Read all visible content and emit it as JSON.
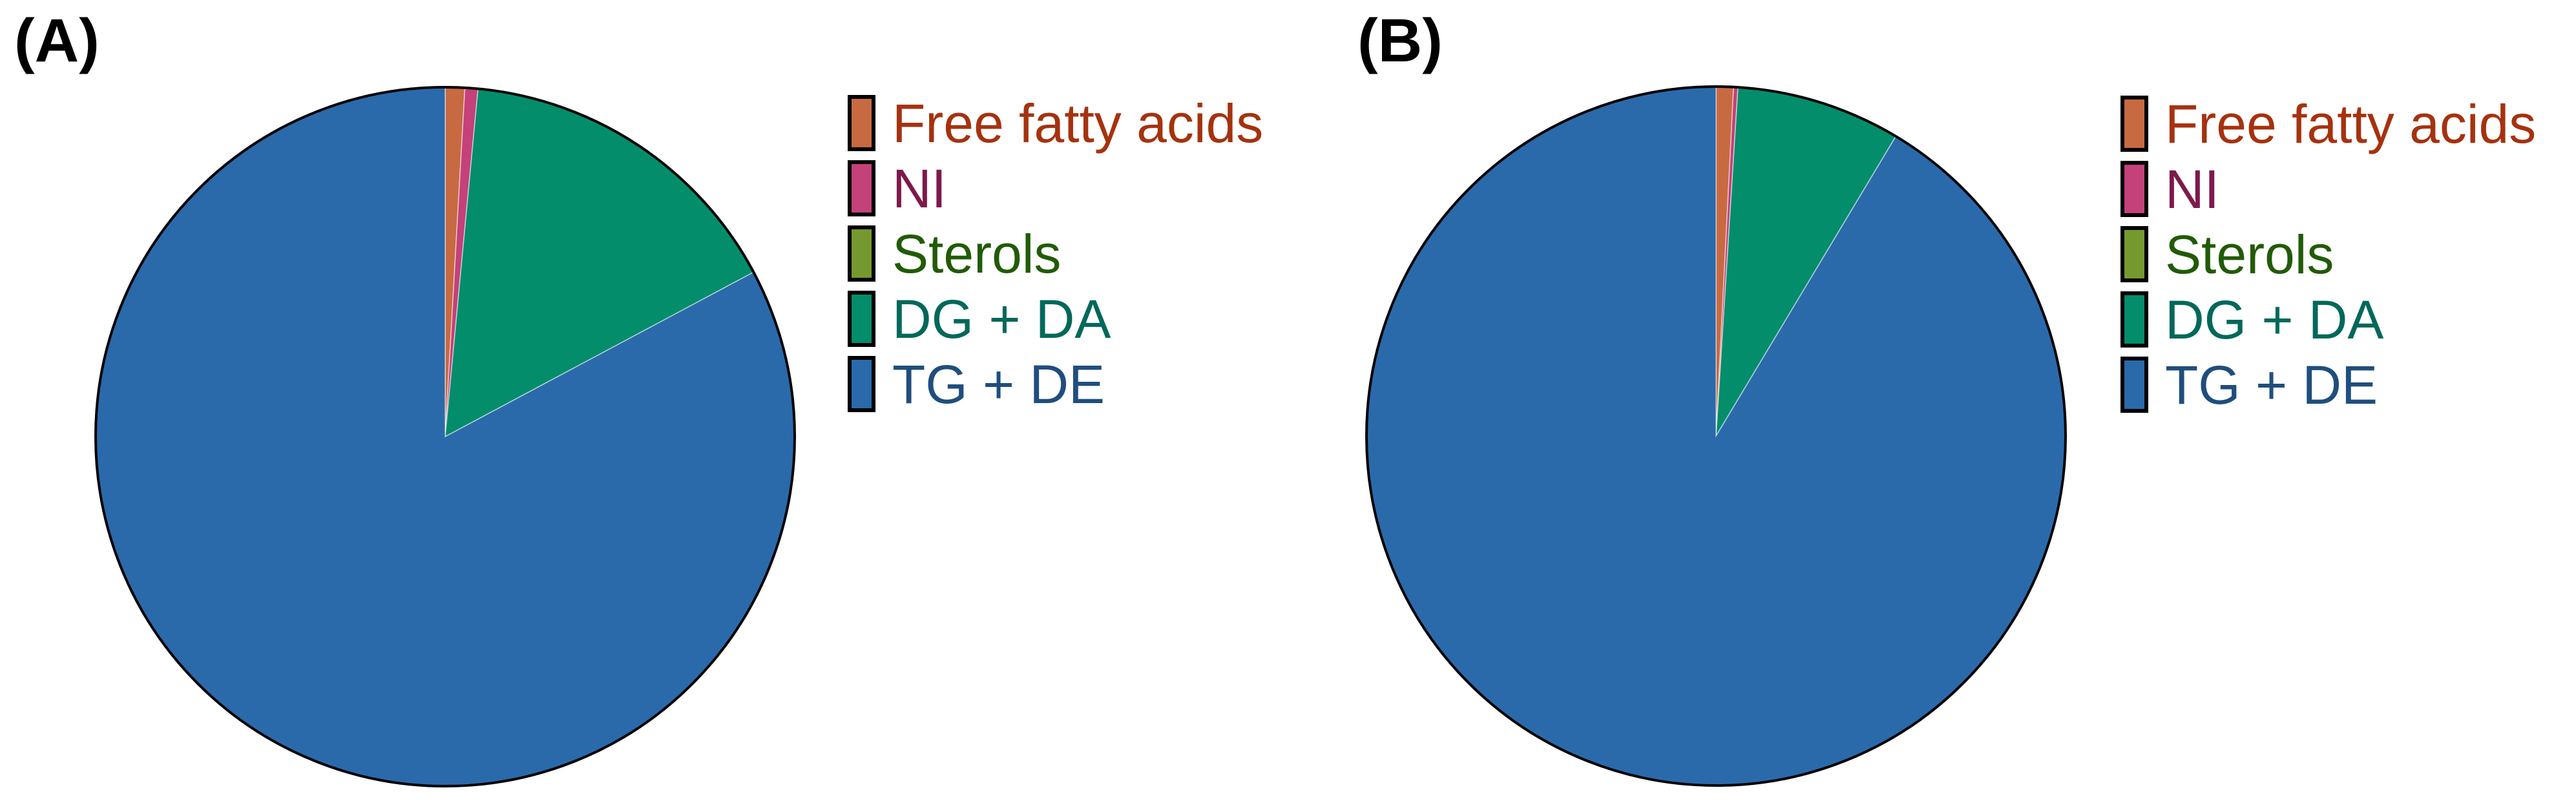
{
  "figure_background": "#ffffff",
  "outline_color": "#000000",
  "separator_color": "rgba(255,255,255,0.55)",
  "chart_data": [
    {
      "type": "pie",
      "panel_label": "(A)",
      "categories": [
        "Free fatty acids",
        "NI",
        "Sterols",
        "DG + DA",
        "TG + DE"
      ],
      "values": [
        0.9,
        0.6,
        0.0,
        15.7,
        82.8
      ],
      "unit": "percent_of_total",
      "colors": [
        "#C76A42",
        "#C4417A",
        "#76992F",
        "#048D6B",
        "#2A6AAB"
      ],
      "legend_text_colors": [
        "#A5320F",
        "#7D1A4B",
        "#215B06",
        "#01685A",
        "#1F4E7D"
      ],
      "start": "12-oclock",
      "direction": "clockwise",
      "legend_position": "right",
      "data_labels": "none"
    },
    {
      "type": "pie",
      "panel_label": "(B)",
      "categories": [
        "Free fatty acids",
        "NI",
        "Sterols",
        "DG + DA",
        "TG + DE"
      ],
      "values": [
        0.8,
        0.2,
        0.0,
        7.6,
        91.4
      ],
      "unit": "percent_of_total",
      "colors": [
        "#C76A42",
        "#C4417A",
        "#76992F",
        "#048D6B",
        "#2A6AAB"
      ],
      "legend_text_colors": [
        "#A5320F",
        "#7D1A4B",
        "#215B06",
        "#01685A",
        "#1F4E7D"
      ],
      "start": "12-oclock",
      "direction": "clockwise",
      "legend_position": "right",
      "data_labels": "none"
    }
  ]
}
